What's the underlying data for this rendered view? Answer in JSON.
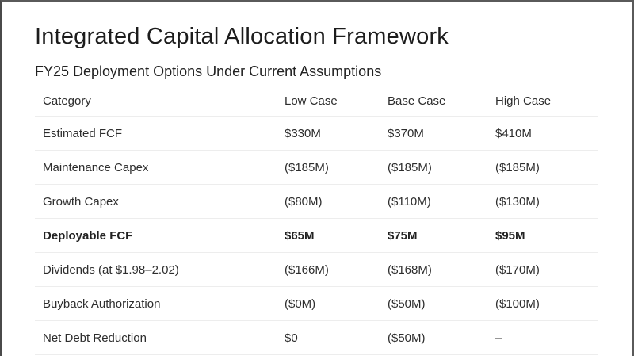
{
  "slide": {
    "title": "Integrated Capital Allocation Framework",
    "subtitle": "FY25 Deployment Options Under Current Assumptions"
  },
  "table": {
    "headers": [
      "Category",
      "Low Case",
      "Base Case",
      "High Case"
    ],
    "rows": [
      {
        "category": "Estimated FCF",
        "low": "$330M",
        "base": "$370M",
        "high": "$410M",
        "emphasis": false
      },
      {
        "category": "Maintenance Capex",
        "low": "($185M)",
        "base": "($185M)",
        "high": "($185M)",
        "emphasis": false
      },
      {
        "category": "Growth Capex",
        "low": "($80M)",
        "base": "($110M)",
        "high": "($130M)",
        "emphasis": false
      },
      {
        "category": "Deployable FCF",
        "low": "$65M",
        "base": "$75M",
        "high": "$95M",
        "emphasis": true
      },
      {
        "category": "Dividends (at $1.98–2.02)",
        "low": "($166M)",
        "base": "($168M)",
        "high": "($170M)",
        "emphasis": false
      },
      {
        "category": "Buyback Authorization",
        "low": "($0M)",
        "base": "($50M)",
        "high": "($100M)",
        "emphasis": false
      },
      {
        "category": "Net Debt Reduction",
        "low": "$0",
        "base": "($50M)",
        "high": "–",
        "emphasis": false
      }
    ]
  },
  "colors": {
    "background": "#ffffff",
    "frame_border": "#555555",
    "divider": "#ededed",
    "title_text": "#1c1c1c",
    "table_text": "#2d2d2d"
  }
}
